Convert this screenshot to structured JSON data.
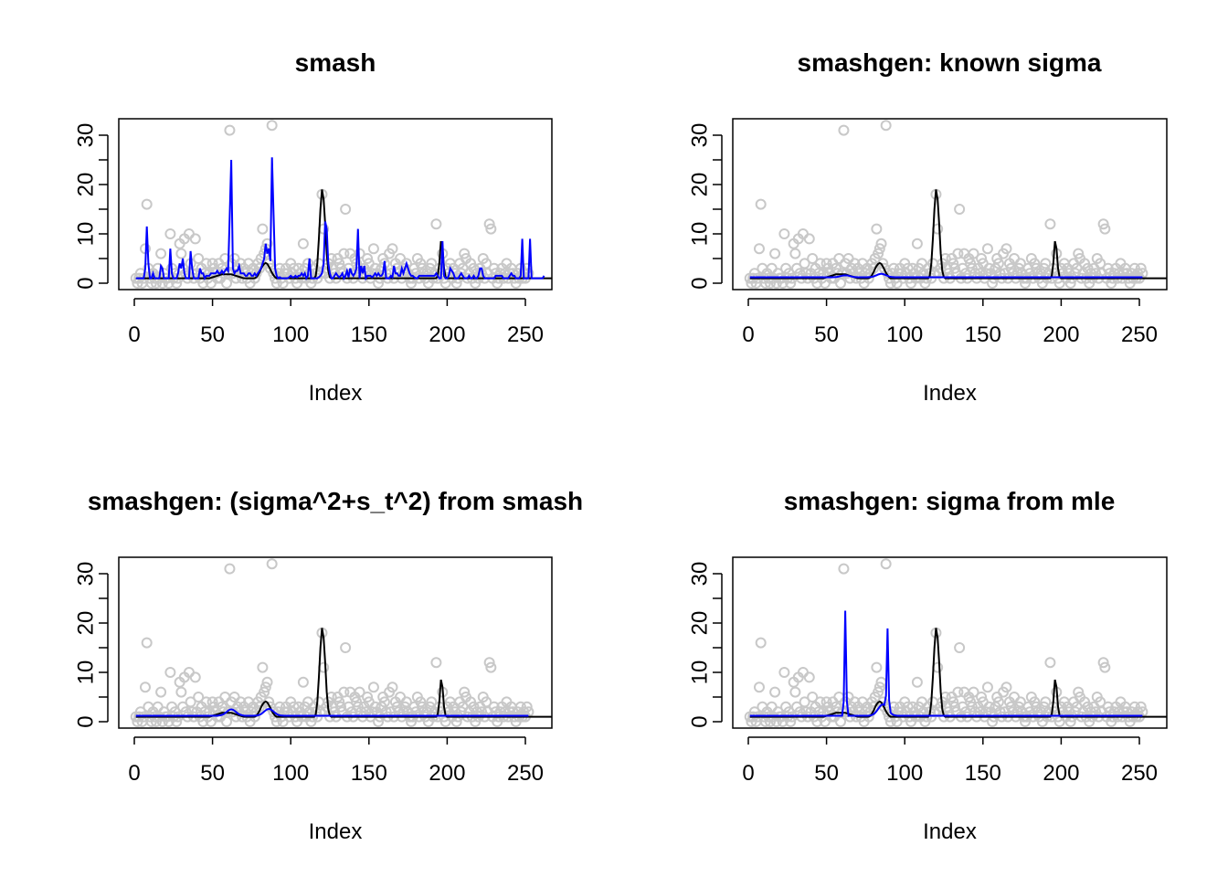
{
  "chart_data": {
    "type": "line",
    "layout": "2x2 grid of panels",
    "x": {
      "start": 1,
      "end": 256,
      "step": 1
    },
    "xlabel": "Index",
    "xticks": [
      0,
      50,
      100,
      150,
      200,
      250
    ],
    "yticks": [
      0,
      10,
      20,
      30
    ],
    "yminor_ticks": [
      5,
      15,
      25
    ],
    "xlim": [
      0,
      256
    ],
    "ylim": [
      -1.5,
      33.5
    ],
    "colors": {
      "points": "#c8c8c8",
      "truth": "#000000",
      "estimate": "#0000ff"
    },
    "observations": {
      "name": "data points",
      "values": [
        1,
        0,
        1,
        2,
        0,
        1,
        7,
        16,
        3,
        1,
        0,
        2,
        1,
        0,
        3,
        1,
        6,
        0,
        2,
        1,
        1,
        0,
        10,
        3,
        1,
        2,
        0,
        1,
        8,
        6,
        3,
        9,
        2,
        1,
        10,
        4,
        2,
        1,
        9,
        2,
        5,
        1,
        3,
        0,
        2,
        4,
        1,
        2,
        0,
        4,
        3,
        2,
        1,
        4,
        1,
        3,
        2,
        5,
        0,
        2,
        31,
        4,
        2,
        5,
        1,
        3,
        2,
        4,
        1,
        3,
        2,
        1,
        4,
        0,
        2,
        3,
        1,
        2,
        4,
        3,
        5,
        11,
        6,
        7,
        8,
        4,
        3,
        32,
        2,
        1,
        0,
        2,
        3,
        1,
        0,
        2,
        3,
        2,
        1,
        4,
        2,
        3,
        1,
        0,
        3,
        2,
        1,
        8,
        3,
        1,
        4,
        2,
        0,
        1,
        3,
        2,
        1,
        4,
        2,
        18,
        11,
        2,
        3,
        4,
        1,
        5,
        3,
        2,
        1,
        5,
        4,
        3,
        2,
        6,
        15,
        1,
        3,
        6,
        2,
        1,
        5,
        4,
        3,
        6,
        2,
        1,
        3,
        2,
        5,
        4,
        1,
        2,
        7,
        3,
        2,
        0,
        1,
        3,
        5,
        4,
        2,
        1,
        6,
        2,
        7,
        1,
        4,
        3,
        2,
        5,
        1,
        2,
        3,
        4,
        2,
        1,
        0,
        1,
        3,
        2,
        5,
        1,
        4,
        3,
        2,
        1,
        2,
        0,
        3,
        4,
        1,
        2,
        12,
        1,
        3,
        2,
        6,
        1,
        0,
        3,
        2,
        4,
        1,
        3,
        2,
        0,
        1,
        4,
        2,
        3,
        6,
        5,
        1,
        2,
        4,
        1,
        3,
        0,
        2,
        1,
        3,
        2,
        5,
        1,
        4,
        2,
        12,
        11,
        1,
        3,
        2,
        0,
        1,
        2,
        3,
        1,
        2,
        4,
        1,
        2,
        3,
        2,
        1,
        0,
        2,
        1,
        3,
        1,
        2,
        1,
        3,
        2
      ]
    },
    "truth": {
      "name": "true mean",
      "values": [
        1,
        1,
        1,
        1,
        1,
        1,
        1,
        1,
        1,
        1,
        1,
        1,
        1,
        1,
        1,
        1,
        1,
        1,
        1,
        1,
        1,
        1,
        1,
        1,
        1,
        1,
        1,
        1,
        1,
        1,
        1,
        1,
        1,
        1,
        1,
        1,
        1,
        1,
        1,
        1,
        1,
        1,
        1,
        1,
        1,
        1,
        1,
        1,
        1.1,
        1.2,
        1.3,
        1.4,
        1.5,
        1.6,
        1.7,
        1.8,
        1.8,
        1.8,
        1.8,
        1.8,
        1.8,
        1.8,
        1.7,
        1.6,
        1.5,
        1.4,
        1.3,
        1.2,
        1.1,
        1,
        1,
        1,
        1,
        1,
        1,
        1,
        1,
        1.2,
        1.6,
        2.2,
        2.9,
        3.5,
        3.9,
        4.1,
        3.9,
        3.4,
        2.8,
        2.1,
        1.6,
        1.2,
        1,
        1,
        1,
        1,
        1,
        1,
        1,
        1,
        1,
        1,
        1,
        1,
        1,
        1,
        1,
        1,
        1,
        1,
        1,
        1,
        1,
        1,
        1,
        1,
        1,
        1.5,
        4,
        9,
        15,
        19,
        17,
        12,
        6,
        2.5,
        1.2,
        1,
        1,
        1,
        1,
        1,
        1,
        1,
        1,
        1,
        1,
        1,
        1,
        1,
        1,
        1,
        1,
        1,
        1,
        1,
        1,
        1,
        1,
        1,
        1,
        1,
        1,
        1,
        1,
        1,
        1,
        1,
        1,
        1,
        1,
        1,
        1,
        1,
        1,
        1,
        1,
        1,
        1,
        1,
        1,
        1,
        1,
        1,
        1,
        1,
        1,
        1,
        1,
        1,
        1,
        1,
        1,
        1,
        1,
        1,
        1,
        1,
        1,
        1,
        1,
        1,
        1,
        1,
        1,
        1.5,
        4,
        8.5,
        7,
        3,
        1.2,
        1,
        1,
        1,
        1,
        1,
        1,
        1,
        1,
        1,
        1,
        1,
        1,
        1,
        1,
        1,
        1,
        1,
        1,
        1,
        1,
        1,
        1,
        1,
        1,
        1,
        1,
        1,
        1,
        1,
        1,
        1,
        1,
        1,
        1,
        1,
        1,
        1,
        1,
        1,
        1,
        1,
        1,
        1,
        1,
        1,
        1,
        1,
        1,
        1,
        1,
        1,
        1,
        1,
        1,
        1,
        1,
        1,
        1,
        1,
        1,
        1,
        1,
        1,
        1,
        1,
        1,
        1,
        1,
        1,
        1,
        1,
        1,
        1,
        1,
        1,
        1,
        1,
        1,
        1,
        1,
        1,
        1,
        1,
        1,
        1,
        1,
        1,
        1,
        1,
        1,
        1,
        1,
        1,
        1
      ]
    },
    "panels": [
      {
        "title": "smash",
        "estimate": [
          1,
          1,
          1,
          1,
          1,
          1,
          3,
          11.5,
          4,
          1,
          1,
          2,
          1,
          1,
          1,
          1,
          3.5,
          3,
          1,
          1,
          1,
          1,
          7,
          2,
          1,
          1,
          1,
          2,
          4,
          3,
          5,
          2,
          1,
          1,
          1,
          6.5,
          3,
          1,
          1,
          1,
          1,
          3,
          2,
          2,
          1,
          1.5,
          1.5,
          1.5,
          2,
          2,
          2,
          2,
          2.5,
          2,
          2,
          2.5,
          2,
          2.5,
          3,
          2.5,
          13.5,
          25,
          3,
          2,
          2.5,
          2.5,
          3.5,
          2,
          2,
          2,
          1.5,
          1.5,
          2,
          2,
          1.5,
          1.5,
          2,
          1.5,
          2,
          2.5,
          3,
          4,
          5,
          8,
          6,
          7,
          4.5,
          25.5,
          14,
          3,
          1.5,
          1,
          1.2,
          1,
          1,
          1,
          1,
          1,
          1.2,
          1.5,
          1.2,
          1.2,
          1.5,
          1.2,
          1.5,
          1.5,
          2,
          1.5,
          2,
          1,
          1.5,
          5,
          1,
          1,
          1,
          1,
          1,
          1.2,
          1.5,
          2,
          4,
          12.5,
          11,
          4,
          2,
          1,
          1,
          1.5,
          2,
          1.5,
          1.2,
          1.5,
          2,
          1,
          1.5,
          2.5,
          1.2,
          3,
          2,
          1.5,
          2,
          3,
          11,
          1,
          3.5,
          2,
          3.5,
          1,
          1.5,
          1.5,
          1.5,
          1.2,
          1.5,
          2,
          1.5,
          2,
          1.5,
          1.5,
          2,
          4.5,
          1,
          1,
          1,
          1.5,
          1.2,
          3.5,
          2,
          2,
          1.5,
          1.5,
          3,
          2,
          3,
          4,
          3,
          2,
          1.5,
          1.5,
          1.2,
          1,
          1,
          1.5,
          1.5,
          1.5,
          1.5,
          1.5,
          1.5,
          1.5,
          1.5,
          1.5,
          1.5,
          1.5,
          2,
          1.5,
          1,
          1,
          8.5,
          1.5,
          1,
          1,
          1.5,
          3,
          2.5,
          2,
          1,
          1,
          1,
          1.5,
          2,
          1.5,
          1,
          1,
          1,
          1.5,
          1,
          1,
          1.5,
          1,
          1,
          1.5,
          3,
          3,
          1.5,
          1,
          1,
          1,
          1,
          1,
          1,
          1,
          1.5,
          1.5,
          1.5,
          1.5,
          1.5,
          1,
          1,
          1,
          1,
          1.5,
          2,
          1.5,
          1.5,
          1,
          1,
          1,
          1.5,
          9,
          1,
          1,
          1,
          1,
          9,
          1,
          1,
          1,
          1,
          1,
          1,
          1,
          1,
          1.5
        ]
      },
      {
        "title": "smashgen: known sigma",
        "estimate_description": "nearly flat at ~1.2 with a mild bump to ~1.8 near index 85",
        "estimate": {
          "baseline": 1.2,
          "bumps": [
            {
              "center": 62,
              "height": 1.6
            },
            {
              "center": 85,
              "height": 1.9
            }
          ]
        }
      },
      {
        "title": "smashgen: (sigma^2+s_t^2) from smash",
        "estimate_description": "nearly flat at ~1.2 with a small wiggle near 62 and a bump to ~2.5 near index 86",
        "estimate": {
          "baseline": 1.2,
          "bumps": [
            {
              "center": 62,
              "height": 2.5
            },
            {
              "center": 86,
              "height": 2.6
            }
          ]
        }
      },
      {
        "title": "smashgen: sigma from mle",
        "estimate_description": "flat at ~1.2 with spikes to ~22.5 at index 62 and ~17.5 at index 89, bump to ~3.5 near 88",
        "estimate": {
          "baseline": 1.2,
          "bumps": [
            {
              "center": 62,
              "height": 22.5
            },
            {
              "center": 86,
              "height": 3.5
            },
            {
              "center": 89,
              "height": 17.5
            }
          ]
        }
      }
    ]
  }
}
